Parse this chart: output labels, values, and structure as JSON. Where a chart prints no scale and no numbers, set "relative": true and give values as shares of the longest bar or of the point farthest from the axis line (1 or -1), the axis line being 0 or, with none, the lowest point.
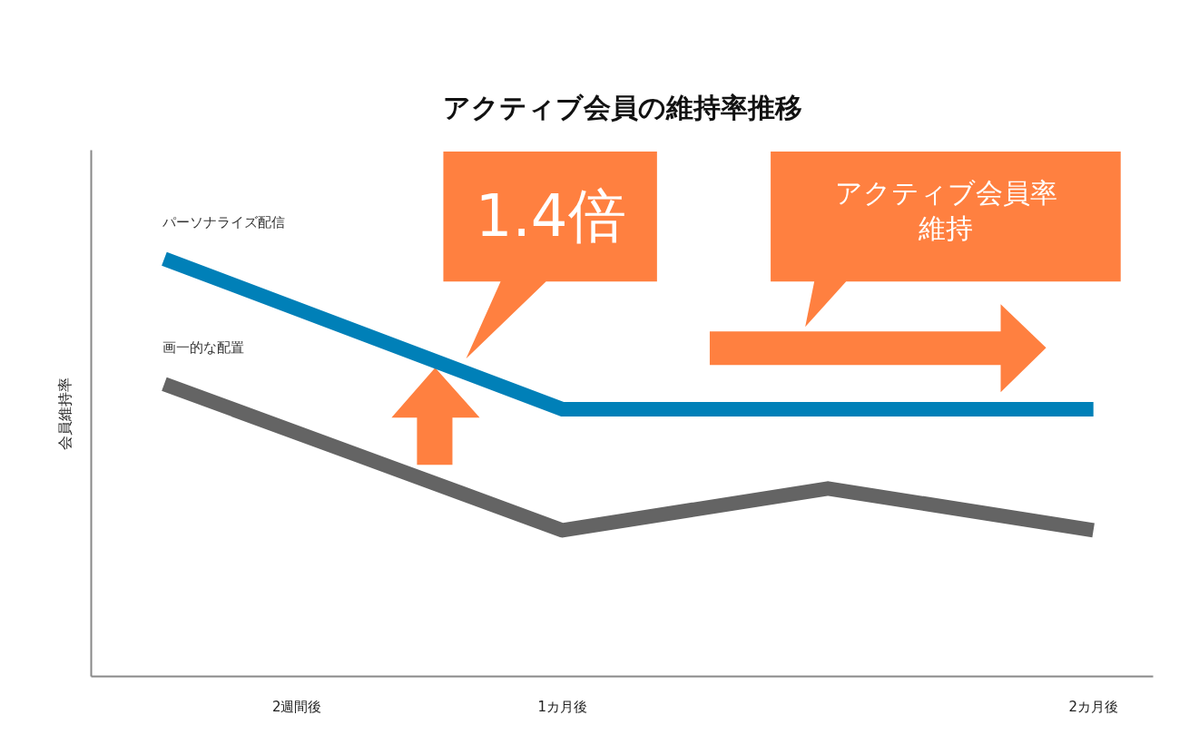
{
  "chart_data": {
    "type": "line",
    "title": "アクティブ会員の維持率推移",
    "ylabel": "会員維持率",
    "relative": true,
    "categories": [
      null,
      "2週間後",
      null,
      "1カ月後",
      null,
      null,
      null,
      "2カ月後"
    ],
    "series": [
      {
        "name": "パーソナライズ配信",
        "color": "#0080b8",
        "values": [
          1.0,
          null,
          null,
          0.64,
          null,
          null,
          null,
          0.64
        ]
      },
      {
        "name": "画一的な配置",
        "color": "#646464",
        "values": [
          0.7,
          null,
          null,
          0.35,
          null,
          0.45,
          null,
          0.35
        ]
      }
    ],
    "annotations": [
      "1.4倍",
      "アクティブ会員率維持"
    ],
    "grid": false,
    "marker": "none",
    "line_style": "solid"
  }
}
